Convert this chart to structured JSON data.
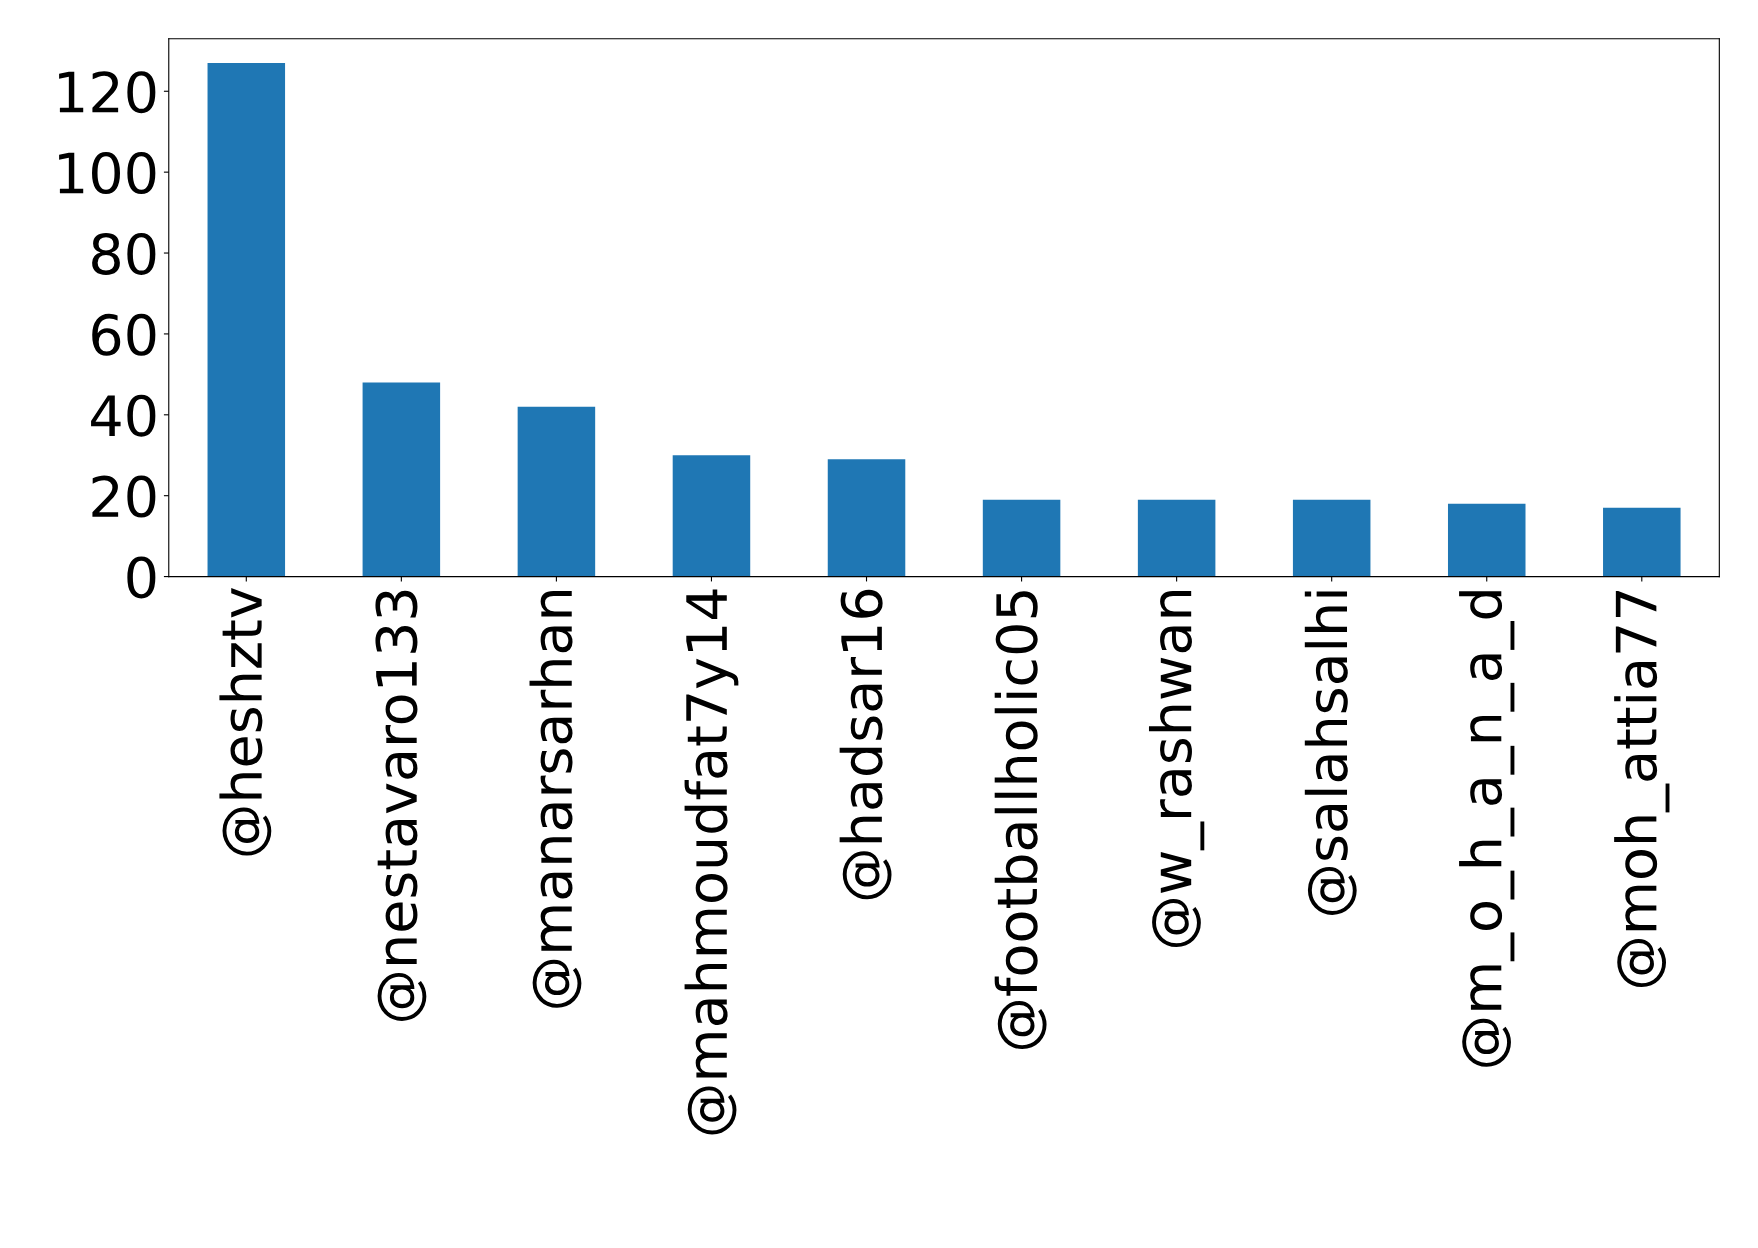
{
  "chart_data": {
    "type": "bar",
    "categories": [
      "@heshztv",
      "@nestavaro133",
      "@manarsarhan",
      "@mahmoudfat7y14",
      "@hadsar16",
      "@footballholic05",
      "@w_rashwan",
      "@salahsalhi",
      "@m_o_h_a_n_a_d",
      "@moh_attia77"
    ],
    "values": [
      127,
      48,
      42,
      30,
      29,
      19,
      19,
      19,
      18,
      17
    ],
    "color": "#1f77b4",
    "ylim": [
      0,
      133
    ],
    "yticks": [
      0,
      20,
      40,
      60,
      80,
      100,
      120
    ],
    "grid": false,
    "legend": false
  }
}
